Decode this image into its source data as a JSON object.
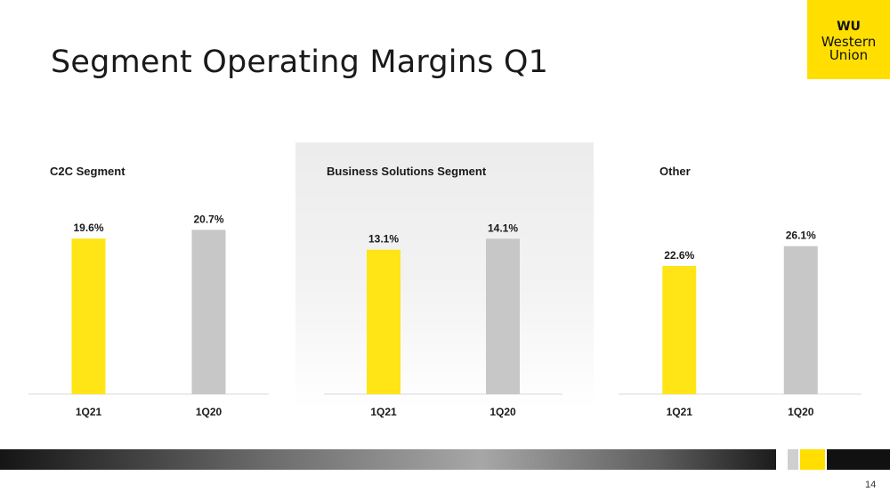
{
  "slide": {
    "title": "Segment Operating Margins Q1",
    "page_number": "14"
  },
  "logo": {
    "line1": "WU",
    "line2": "Western",
    "line3": "Union",
    "color": "#ffde00"
  },
  "colors": {
    "current": "#ffe516",
    "prior": "#c7c7c7",
    "axis": "#d9d9d9"
  },
  "chart_data": [
    {
      "type": "bar",
      "title": "C2C Segment",
      "categories": [
        "1Q21",
        "1Q20"
      ],
      "values": [
        19.6,
        20.7
      ],
      "labels": [
        "19.6%",
        "20.7%"
      ],
      "ylim": [
        0,
        25
      ]
    },
    {
      "type": "bar",
      "title": "Business Solutions Segment",
      "categories": [
        "1Q21",
        "1Q20"
      ],
      "values": [
        13.1,
        14.1
      ],
      "labels": [
        "13.1%",
        "14.1%"
      ],
      "ylim": [
        0,
        18
      ]
    },
    {
      "type": "bar",
      "title": "Other",
      "categories": [
        "1Q21",
        "1Q20"
      ],
      "values": [
        22.6,
        26.1
      ],
      "labels": [
        "22.6%",
        "26.1%"
      ],
      "ylim": [
        0,
        35
      ]
    }
  ]
}
